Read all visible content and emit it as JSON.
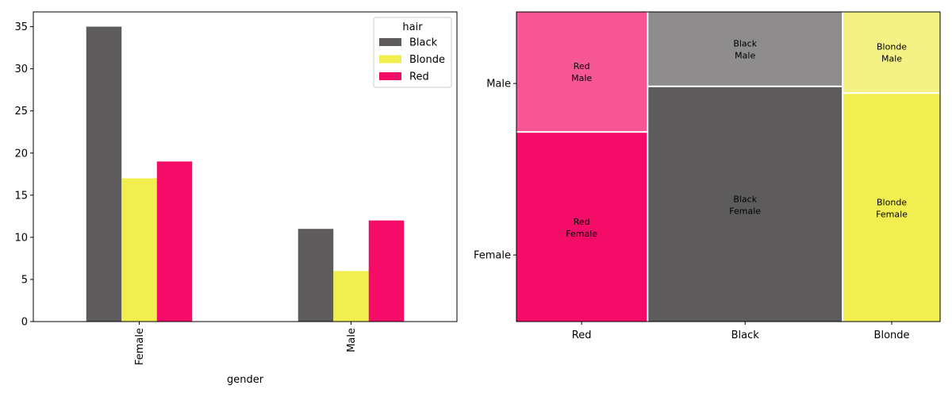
{
  "chart_data": [
    {
      "type": "bar",
      "categories": [
        "Female",
        "Male"
      ],
      "series": [
        {
          "name": "Black",
          "values": [
            35,
            11
          ],
          "color": "#5d5b5b"
        },
        {
          "name": "Blonde",
          "values": [
            17,
            6
          ],
          "color": "#f1ef4f"
        },
        {
          "name": "Red",
          "values": [
            19,
            12
          ],
          "color": "#f50c69"
        }
      ],
      "xlabel": "gender",
      "ylabel": "",
      "ylim": [
        0,
        36.75
      ],
      "yticks": [
        0,
        5,
        10,
        15,
        20,
        25,
        30,
        35
      ],
      "legend": {
        "title": "hair",
        "placement": "top-right"
      },
      "grid": false
    },
    {
      "type": "mosaic",
      "categories": [
        "Red",
        "Black",
        "Blonde"
      ],
      "rows": [
        "Female",
        "Male"
      ],
      "values": {
        "Red": {
          "Female": 19,
          "Male": 12
        },
        "Black": {
          "Female": 35,
          "Male": 11
        },
        "Blonde": {
          "Female": 17,
          "Male": 6
        }
      },
      "colors": {
        "Red": {
          "Female": "#f50c69",
          "Male": "#f75695"
        },
        "Black": {
          "Female": "#5d5b5b",
          "Male": "#8e8c8c"
        },
        "Blonde": {
          "Female": "#f1ef4f",
          "Male": "#f4f284"
        }
      },
      "cell_labels": {
        "Red": {
          "Female": [
            "Red",
            "Female"
          ],
          "Male": [
            "Red",
            "Male"
          ]
        },
        "Black": {
          "Female": [
            "Black",
            "Female"
          ],
          "Male": [
            "Black",
            "Male"
          ]
        },
        "Blonde": {
          "Female": [
            "Blonde",
            "Female"
          ],
          "Male": [
            "Blonde",
            "Male"
          ]
        }
      },
      "grid": false
    }
  ]
}
